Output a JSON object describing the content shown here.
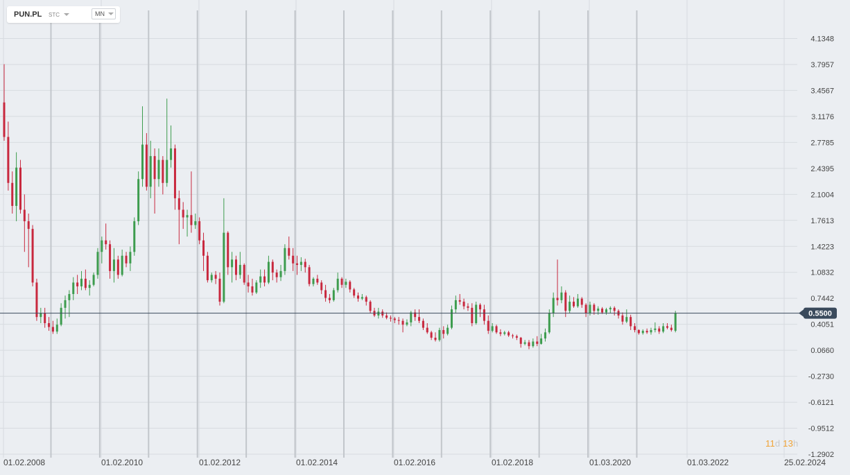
{
  "toolbar": {
    "symbol": "PUN.PL",
    "chart_type": "STC",
    "interval": "MN"
  },
  "countdown": {
    "days_value": "11",
    "days_unit": "d",
    "hours_value": "13",
    "hours_unit": "h"
  },
  "price_tag": "0.5500",
  "colors": {
    "up": "#3d9c4e",
    "down": "#c8283e",
    "grid": "#d7dbe0",
    "separator": "#c2c6cb",
    "price_line": "#3a4a5c",
    "price_tag_bg": "#3a4a5c",
    "background": "#ebeef2"
  },
  "chart_data": {
    "type": "candlestick",
    "interval": "monthly",
    "y_ticks": [
      "4.1348",
      "3.7957",
      "3.4567",
      "3.1176",
      "2.7785",
      "2.4395",
      "2.1004",
      "1.7613",
      "1.4223",
      "1.0832",
      "0.7442",
      "0.4051",
      "0.0660",
      "-0.2730",
      "-0.6121",
      "-0.9512",
      "-1.2902"
    ],
    "ylim": [
      -1.2902,
      4.1348
    ],
    "x_ticks": [
      "01.02.2008",
      "01.02.2010",
      "01.02.2012",
      "01.02.2014",
      "01.02.2016",
      "01.02.2018",
      "01.03.2020",
      "01.03.2022",
      "25.02.2024"
    ],
    "current_price": 0.55,
    "grid": true,
    "candles": [
      [
        3.3,
        3.8,
        2.8,
        2.85
      ],
      [
        2.85,
        3.05,
        2.15,
        2.25
      ],
      [
        2.25,
        2.4,
        1.85,
        1.95
      ],
      [
        1.95,
        2.65,
        1.75,
        2.45
      ],
      [
        2.45,
        2.55,
        1.85,
        1.9
      ],
      [
        1.9,
        2.1,
        1.35,
        1.75
      ],
      [
        1.75,
        1.85,
        1.15,
        1.65
      ],
      [
        1.65,
        1.7,
        0.9,
        0.95
      ],
      [
        0.95,
        1.0,
        0.45,
        0.5
      ],
      [
        0.5,
        0.62,
        0.42,
        0.55
      ],
      [
        0.55,
        0.62,
        0.36,
        0.42
      ],
      [
        0.42,
        0.5,
        0.32,
        0.37
      ],
      [
        0.37,
        0.45,
        0.28,
        0.31
      ],
      [
        0.31,
        0.48,
        0.28,
        0.4
      ],
      [
        0.4,
        0.68,
        0.38,
        0.62
      ],
      [
        0.62,
        0.78,
        0.48,
        0.72
      ],
      [
        0.72,
        0.85,
        0.5,
        0.8
      ],
      [
        0.8,
        1.02,
        0.72,
        0.95
      ],
      [
        0.95,
        1.05,
        0.8,
        0.9
      ],
      [
        0.9,
        1.1,
        0.85,
        1.0
      ],
      [
        1.0,
        1.12,
        0.85,
        0.88
      ],
      [
        0.88,
        0.98,
        0.78,
        0.92
      ],
      [
        0.92,
        1.08,
        0.9,
        1.05
      ],
      [
        1.05,
        1.4,
        1.0,
        1.35
      ],
      [
        1.35,
        1.55,
        1.2,
        1.5
      ],
      [
        1.5,
        1.72,
        1.38,
        1.45
      ],
      [
        1.45,
        1.5,
        1.0,
        1.1
      ],
      [
        1.1,
        1.4,
        0.95,
        1.25
      ],
      [
        1.25,
        1.3,
        1.0,
        1.05
      ],
      [
        1.05,
        1.38,
        1.03,
        1.3
      ],
      [
        1.3,
        1.35,
        1.15,
        1.2
      ],
      [
        1.2,
        1.42,
        1.1,
        1.35
      ],
      [
        1.35,
        1.8,
        1.3,
        1.75
      ],
      [
        1.75,
        2.4,
        1.7,
        2.3
      ],
      [
        2.3,
        3.25,
        2.2,
        2.75
      ],
      [
        2.75,
        2.9,
        2.15,
        2.2
      ],
      [
        2.2,
        2.8,
        2.05,
        2.6
      ],
      [
        2.6,
        2.7,
        1.85,
        2.3
      ],
      [
        2.3,
        2.7,
        2.2,
        2.55
      ],
      [
        2.55,
        2.6,
        2.1,
        2.25
      ],
      [
        2.25,
        3.35,
        2.2,
        2.55
      ],
      [
        2.55,
        3.0,
        2.45,
        2.7
      ],
      [
        2.7,
        2.75,
        1.9,
        2.05
      ],
      [
        2.05,
        2.15,
        1.45,
        1.9
      ],
      [
        1.9,
        2.0,
        1.65,
        1.8
      ],
      [
        1.8,
        1.9,
        1.55,
        1.83
      ],
      [
        1.83,
        2.4,
        1.6,
        1.7
      ],
      [
        1.7,
        1.85,
        1.65,
        1.75
      ],
      [
        1.75,
        1.8,
        1.45,
        1.5
      ],
      [
        1.5,
        1.6,
        1.1,
        1.3
      ],
      [
        1.3,
        1.35,
        0.95,
        0.98
      ],
      [
        0.98,
        1.08,
        0.95,
        1.05
      ],
      [
        1.05,
        1.1,
        0.93,
        1.0
      ],
      [
        1.0,
        1.08,
        0.65,
        0.7
      ],
      [
        0.7,
        2.05,
        0.68,
        1.6
      ],
      [
        1.6,
        1.62,
        1.05,
        1.15
      ],
      [
        1.15,
        1.35,
        0.95,
        1.25
      ],
      [
        1.25,
        1.3,
        0.98,
        1.05
      ],
      [
        1.05,
        1.35,
        1.0,
        1.18
      ],
      [
        1.18,
        1.2,
        0.92,
        0.95
      ],
      [
        0.95,
        1.05,
        0.82,
        0.9
      ],
      [
        0.9,
        1.0,
        0.78,
        0.82
      ],
      [
        0.82,
        0.98,
        0.8,
        0.95
      ],
      [
        0.95,
        1.12,
        0.88,
        1.03
      ],
      [
        1.03,
        1.12,
        0.9,
        0.95
      ],
      [
        0.95,
        1.3,
        0.93,
        1.22
      ],
      [
        1.22,
        1.25,
        0.98,
        1.08
      ],
      [
        1.08,
        1.12,
        0.95,
        1.02
      ],
      [
        1.02,
        1.18,
        0.97,
        1.1
      ],
      [
        1.1,
        1.45,
        1.05,
        1.4
      ],
      [
        1.4,
        1.55,
        1.25,
        1.3
      ],
      [
        1.3,
        1.4,
        1.1,
        1.2
      ],
      [
        1.2,
        1.3,
        1.05,
        1.18
      ],
      [
        1.18,
        1.28,
        1.1,
        1.22
      ],
      [
        1.22,
        1.26,
        1.08,
        1.15
      ],
      [
        1.15,
        1.18,
        0.9,
        0.93
      ],
      [
        0.93,
        1.02,
        0.9,
        1.0
      ],
      [
        1.0,
        1.05,
        0.92,
        0.95
      ],
      [
        0.95,
        0.98,
        0.8,
        0.85
      ],
      [
        0.85,
        0.92,
        0.7,
        0.75
      ],
      [
        0.75,
        0.8,
        0.68,
        0.72
      ],
      [
        0.72,
        0.88,
        0.7,
        0.85
      ],
      [
        0.85,
        1.08,
        0.82,
        1.0
      ],
      [
        1.0,
        1.02,
        0.88,
        0.92
      ],
      [
        0.92,
        1.0,
        0.88,
        0.96
      ],
      [
        0.96,
        0.98,
        0.82,
        0.86
      ],
      [
        0.86,
        0.88,
        0.75,
        0.78
      ],
      [
        0.78,
        0.82,
        0.7,
        0.74
      ],
      [
        0.74,
        0.8,
        0.72,
        0.76
      ],
      [
        0.76,
        0.78,
        0.65,
        0.7
      ],
      [
        0.7,
        0.72,
        0.55,
        0.58
      ],
      [
        0.58,
        0.62,
        0.5,
        0.52
      ],
      [
        0.52,
        0.62,
        0.48,
        0.57
      ],
      [
        0.57,
        0.6,
        0.49,
        0.52
      ],
      [
        0.52,
        0.56,
        0.47,
        0.49
      ],
      [
        0.49,
        0.52,
        0.44,
        0.48
      ],
      [
        0.48,
        0.5,
        0.42,
        0.46
      ],
      [
        0.46,
        0.5,
        0.4,
        0.45
      ],
      [
        0.45,
        0.48,
        0.3,
        0.4
      ],
      [
        0.4,
        0.47,
        0.38,
        0.43
      ],
      [
        0.43,
        0.58,
        0.38,
        0.56
      ],
      [
        0.56,
        0.6,
        0.45,
        0.5
      ],
      [
        0.5,
        0.6,
        0.42,
        0.45
      ],
      [
        0.45,
        0.48,
        0.33,
        0.36
      ],
      [
        0.36,
        0.42,
        0.28,
        0.3
      ],
      [
        0.3,
        0.32,
        0.2,
        0.23
      ],
      [
        0.23,
        0.3,
        0.18,
        0.2
      ],
      [
        0.2,
        0.36,
        0.18,
        0.33
      ],
      [
        0.33,
        0.38,
        0.22,
        0.28
      ],
      [
        0.28,
        0.4,
        0.26,
        0.36
      ],
      [
        0.36,
        0.65,
        0.34,
        0.6
      ],
      [
        0.6,
        0.78,
        0.55,
        0.72
      ],
      [
        0.72,
        0.8,
        0.66,
        0.7
      ],
      [
        0.7,
        0.74,
        0.6,
        0.64
      ],
      [
        0.64,
        0.68,
        0.58,
        0.62
      ],
      [
        0.62,
        0.68,
        0.38,
        0.42
      ],
      [
        0.42,
        0.7,
        0.4,
        0.66
      ],
      [
        0.66,
        0.68,
        0.5,
        0.6
      ],
      [
        0.6,
        0.66,
        0.4,
        0.45
      ],
      [
        0.45,
        0.52,
        0.28,
        0.32
      ],
      [
        0.32,
        0.42,
        0.3,
        0.38
      ],
      [
        0.38,
        0.4,
        0.28,
        0.3
      ],
      [
        0.3,
        0.34,
        0.25,
        0.28
      ],
      [
        0.28,
        0.32,
        0.26,
        0.3
      ],
      [
        0.3,
        0.32,
        0.24,
        0.26
      ],
      [
        0.26,
        0.28,
        0.22,
        0.25
      ],
      [
        0.25,
        0.27,
        0.2,
        0.23
      ],
      [
        0.23,
        0.24,
        0.1,
        0.15
      ],
      [
        0.15,
        0.2,
        0.13,
        0.17
      ],
      [
        0.17,
        0.2,
        0.08,
        0.12
      ],
      [
        0.12,
        0.22,
        0.1,
        0.18
      ],
      [
        0.18,
        0.25,
        0.12,
        0.15
      ],
      [
        0.15,
        0.28,
        0.14,
        0.22
      ],
      [
        0.22,
        0.35,
        0.18,
        0.3
      ],
      [
        0.3,
        0.6,
        0.28,
        0.55
      ],
      [
        0.55,
        0.82,
        0.5,
        0.75
      ],
      [
        0.75,
        1.25,
        0.65,
        0.72
      ],
      [
        0.72,
        0.9,
        0.68,
        0.82
      ],
      [
        0.82,
        0.85,
        0.5,
        0.58
      ],
      [
        0.58,
        0.78,
        0.55,
        0.7
      ],
      [
        0.7,
        0.76,
        0.62,
        0.64
      ],
      [
        0.64,
        0.8,
        0.62,
        0.74
      ],
      [
        0.74,
        0.76,
        0.62,
        0.66
      ],
      [
        0.66,
        0.68,
        0.5,
        0.55
      ],
      [
        0.55,
        0.7,
        0.52,
        0.66
      ],
      [
        0.66,
        0.68,
        0.53,
        0.58
      ],
      [
        0.58,
        0.64,
        0.53,
        0.61
      ],
      [
        0.61,
        0.63,
        0.54,
        0.56
      ],
      [
        0.56,
        0.62,
        0.53,
        0.6
      ],
      [
        0.6,
        0.64,
        0.55,
        0.62
      ],
      [
        0.62,
        0.64,
        0.52,
        0.58
      ],
      [
        0.58,
        0.6,
        0.48,
        0.52
      ],
      [
        0.52,
        0.56,
        0.4,
        0.44
      ],
      [
        0.44,
        0.6,
        0.42,
        0.5
      ],
      [
        0.5,
        0.53,
        0.33,
        0.38
      ],
      [
        0.38,
        0.42,
        0.3,
        0.33
      ],
      [
        0.33,
        0.34,
        0.27,
        0.29
      ],
      [
        0.29,
        0.34,
        0.27,
        0.32
      ],
      [
        0.32,
        0.35,
        0.28,
        0.3
      ],
      [
        0.3,
        0.36,
        0.27,
        0.33
      ],
      [
        0.33,
        0.43,
        0.3,
        0.35
      ],
      [
        0.35,
        0.38,
        0.28,
        0.31
      ],
      [
        0.31,
        0.42,
        0.29,
        0.38
      ],
      [
        0.38,
        0.42,
        0.34,
        0.36
      ],
      [
        0.36,
        0.4,
        0.31,
        0.33
      ],
      [
        0.32,
        0.58,
        0.3,
        0.55
      ]
    ]
  }
}
